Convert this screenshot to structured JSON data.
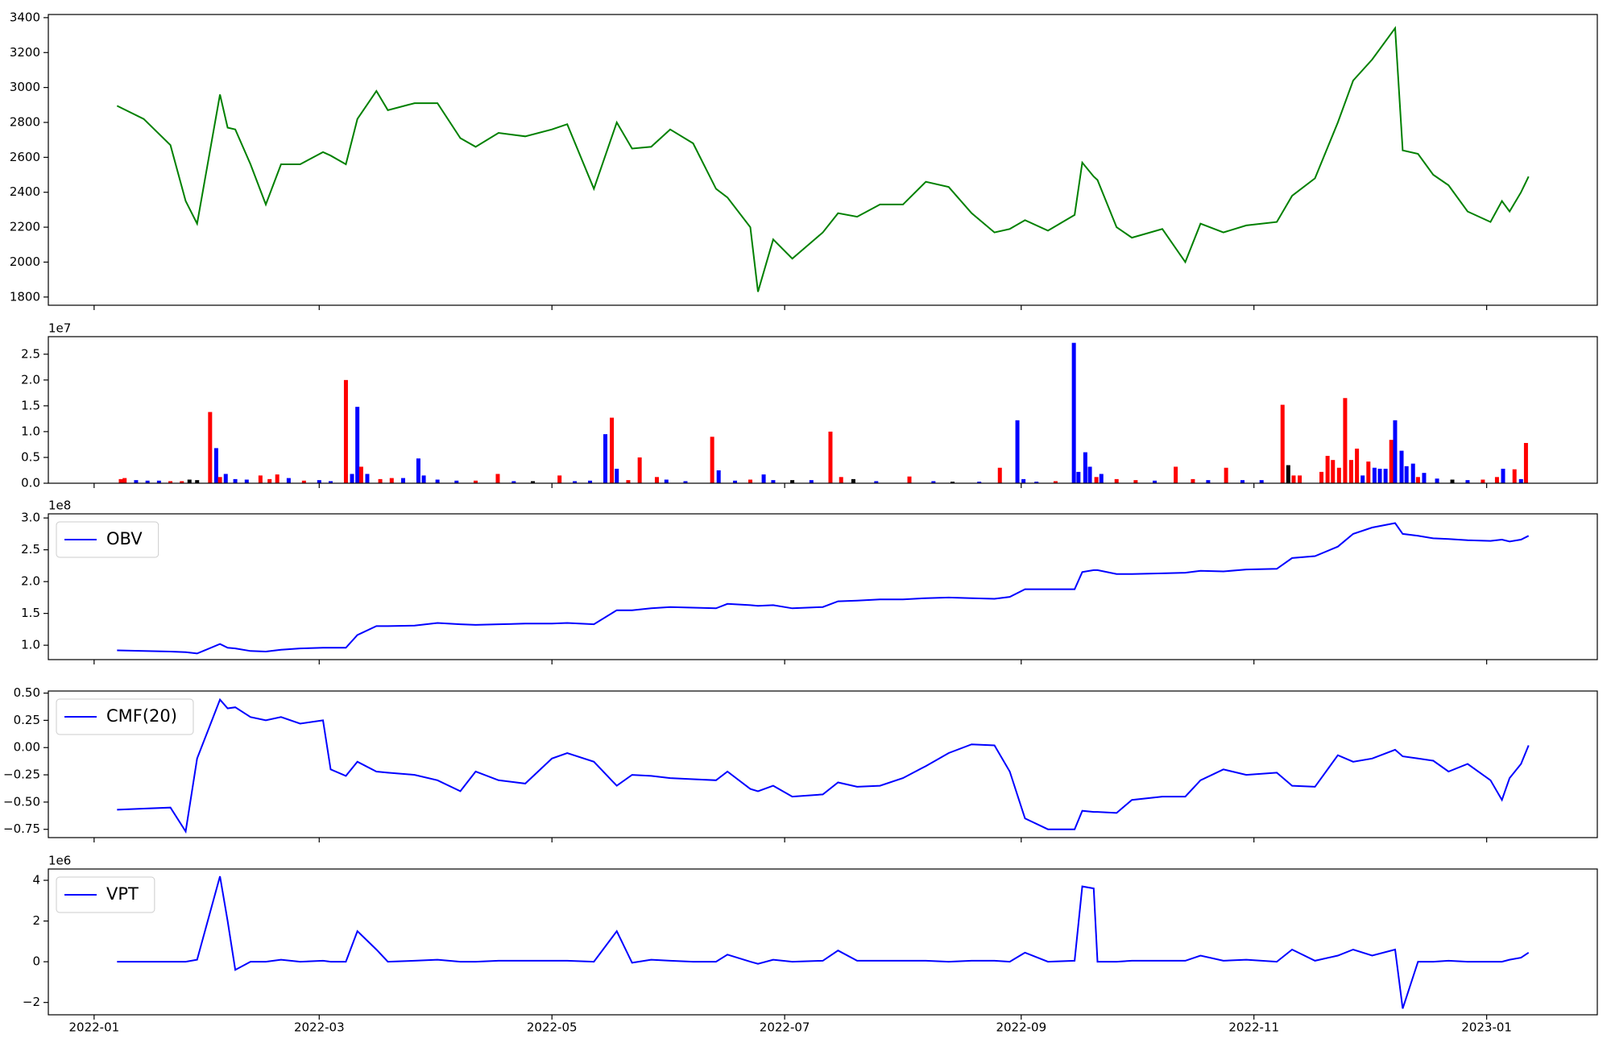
{
  "chart_data": [
    {
      "type": "line",
      "xlim": [
        -12,
        394
      ],
      "ylim": [
        1753,
        3418
      ],
      "yticks": [
        1800,
        2000,
        2200,
        2400,
        2600,
        2800,
        3000,
        3200,
        3400
      ],
      "x": [
        6,
        13,
        20,
        24,
        27,
        33,
        35,
        37,
        41,
        45,
        49,
        54,
        60,
        62,
        66,
        69,
        74,
        77,
        84,
        90,
        96,
        100,
        106,
        113,
        120,
        124,
        131,
        137,
        141,
        146,
        151,
        157,
        163,
        166,
        172,
        174,
        178,
        183,
        191,
        195,
        200,
        206,
        212,
        218,
        224,
        230,
        236,
        240,
        244,
        250,
        257,
        259,
        262,
        263,
        268,
        272,
        280,
        286,
        290,
        296,
        302,
        310,
        314,
        320,
        326,
        330,
        335,
        341,
        343,
        347,
        351,
        355,
        360,
        366,
        369,
        371,
        374,
        376
      ],
      "series": [
        {
          "color": "#008000",
          "values": [
            2895,
            2820,
            2670,
            2350,
            2220,
            2960,
            2770,
            2760,
            2560,
            2330,
            2560,
            2560,
            2630,
            2610,
            2560,
            2820,
            2980,
            2870,
            2910,
            2910,
            2710,
            2660,
            2740,
            2720,
            2760,
            2790,
            2420,
            2800,
            2650,
            2660,
            2760,
            2680,
            2420,
            2370,
            2200,
            1830,
            2130,
            2020,
            2170,
            2280,
            2260,
            2330,
            2330,
            2460,
            2430,
            2280,
            2170,
            2190,
            2240,
            2180,
            2270,
            2570,
            2490,
            2470,
            2200,
            2140,
            2190,
            2000,
            2220,
            2170,
            2210,
            2230,
            2380,
            2480,
            2800,
            3040,
            3160,
            3340,
            2640,
            2620,
            2500,
            2440,
            2290,
            2230,
            2350,
            2290,
            2400,
            2490
          ]
        }
      ]
    },
    {
      "type": "bar",
      "xlim": [
        -12,
        394
      ],
      "ylim": [
        0,
        2.84
      ],
      "scale_label": "1e7",
      "yticks": [
        {
          "value": 0,
          "label": "0.0"
        },
        {
          "value": 0.5,
          "label": "0.5"
        },
        {
          "value": 1,
          "label": "1.0"
        },
        {
          "value": 1.5,
          "label": "1.5"
        },
        {
          "value": 2,
          "label": "2.0"
        },
        {
          "value": 2.5,
          "label": "2.5"
        }
      ],
      "x": [
        7,
        8,
        11,
        14,
        17,
        20,
        23,
        25,
        27,
        30.4,
        32,
        33,
        34.5,
        37,
        40,
        43.6,
        46,
        48,
        51,
        55,
        59,
        62,
        66,
        67.6,
        69,
        70,
        71.6,
        75,
        78,
        81,
        85,
        86.4,
        90,
        95,
        100,
        105.8,
        110,
        115,
        122,
        126,
        130,
        134,
        135.7,
        137,
        140,
        143,
        147.5,
        150,
        155,
        162,
        163.7,
        168,
        172,
        175.5,
        178,
        183,
        188,
        193,
        195.8,
        199,
        205,
        213.7,
        220,
        225,
        232,
        237.4,
        242,
        243.6,
        247,
        252,
        256.8,
        258,
        259.8,
        261,
        262.7,
        264,
        268,
        273,
        278,
        283.5,
        288,
        292,
        296.7,
        301,
        306,
        311.5,
        313,
        314.4,
        316,
        321.7,
        323.3,
        324.7,
        326.3,
        327.9,
        329.5,
        331,
        332.5,
        334,
        335.6,
        337,
        338.5,
        340,
        341,
        342.7,
        344,
        345.7,
        347,
        348.6,
        352,
        356,
        360,
        364,
        367.7,
        369.3,
        372.3,
        374,
        375.3
      ],
      "values": [
        0.08,
        0.1,
        0.06,
        0.05,
        0.05,
        0.04,
        0.04,
        0.07,
        0.06,
        1.38,
        0.68,
        0.12,
        0.18,
        0.08,
        0.07,
        0.15,
        0.08,
        0.17,
        0.1,
        0.05,
        0.06,
        0.04,
        2.0,
        0.18,
        1.48,
        0.32,
        0.18,
        0.08,
        0.1,
        0.1,
        0.48,
        0.15,
        0.07,
        0.05,
        0.05,
        0.18,
        0.04,
        0.04,
        0.15,
        0.04,
        0.05,
        0.95,
        1.27,
        0.28,
        0.06,
        0.5,
        0.12,
        0.07,
        0.04,
        0.9,
        0.25,
        0.05,
        0.07,
        0.17,
        0.06,
        0.06,
        0.06,
        1.0,
        0.12,
        0.08,
        0.04,
        0.13,
        0.04,
        0.03,
        0.03,
        0.3,
        1.22,
        0.08,
        0.03,
        0.04,
        2.72,
        0.22,
        0.6,
        0.32,
        0.12,
        0.18,
        0.08,
        0.06,
        0.05,
        0.32,
        0.08,
        0.06,
        0.3,
        0.06,
        0.06,
        1.52,
        0.35,
        0.15,
        0.15,
        0.22,
        0.53,
        0.45,
        0.3,
        1.65,
        0.45,
        0.67,
        0.15,
        0.42,
        0.3,
        0.28,
        0.28,
        0.84,
        1.22,
        0.63,
        0.33,
        0.38,
        0.12,
        0.2,
        0.09,
        0.07,
        0.06,
        0.07,
        0.12,
        0.28,
        0.27,
        0.08,
        0.78
      ],
      "colors": [
        "red",
        "red",
        "blue",
        "blue",
        "blue",
        "red",
        "red",
        "black",
        "black",
        "red",
        "blue",
        "red",
        "blue",
        "blue",
        "blue",
        "red",
        "red",
        "red",
        "blue",
        "red",
        "blue",
        "blue",
        "red",
        "blue",
        "blue",
        "red",
        "blue",
        "red",
        "red",
        "blue",
        "blue",
        "blue",
        "blue",
        "blue",
        "red",
        "red",
        "blue",
        "black",
        "red",
        "blue",
        "blue",
        "blue",
        "red",
        "blue",
        "red",
        "red",
        "red",
        "blue",
        "blue",
        "red",
        "blue",
        "blue",
        "red",
        "blue",
        "blue",
        "black",
        "blue",
        "red",
        "red",
        "black",
        "blue",
        "red",
        "blue",
        "black",
        "blue",
        "red",
        "blue",
        "blue",
        "blue",
        "red",
        "blue",
        "blue",
        "blue",
        "blue",
        "red",
        "blue",
        "red",
        "red",
        "blue",
        "red",
        "red",
        "blue",
        "red",
        "blue",
        "blue",
        "red",
        "black",
        "red",
        "red",
        "red",
        "red",
        "red",
        "red",
        "red",
        "red",
        "red",
        "blue",
        "red",
        "blue",
        "blue",
        "blue",
        "red",
        "blue",
        "blue",
        "blue",
        "blue",
        "red",
        "blue",
        "blue",
        "black",
        "blue",
        "red",
        "red",
        "blue",
        "red",
        "blue",
        "red"
      ]
    },
    {
      "type": "line",
      "xlim": [
        -12,
        394
      ],
      "ylim": [
        0.774,
        3.065
      ],
      "scale_label": "1e8",
      "legend": "upper left",
      "yticks": [
        {
          "value": 1,
          "label": "1.0"
        },
        {
          "value": 1.5,
          "label": "1.5"
        },
        {
          "value": 2,
          "label": "2.0"
        },
        {
          "value": 2.5,
          "label": "2.5"
        },
        {
          "value": 3,
          "label": "3.0"
        }
      ],
      "x": [
        6,
        13,
        20,
        24,
        27,
        33,
        35,
        37,
        41,
        45,
        49,
        54,
        60,
        62,
        66,
        69,
        74,
        77,
        84,
        90,
        96,
        100,
        106,
        113,
        120,
        124,
        131,
        137,
        141,
        146,
        151,
        157,
        163,
        166,
        172,
        174,
        178,
        183,
        191,
        195,
        200,
        206,
        212,
        218,
        224,
        230,
        236,
        240,
        244,
        250,
        257,
        259,
        262,
        263,
        268,
        272,
        280,
        286,
        290,
        296,
        302,
        310,
        314,
        320,
        326,
        330,
        335,
        341,
        343,
        347,
        351,
        355,
        360,
        366,
        369,
        371,
        374,
        376
      ],
      "series": [
        {
          "name": "OBV",
          "color": "#0000ff",
          "values": [
            0.92,
            0.91,
            0.9,
            0.89,
            0.87,
            1.02,
            0.96,
            0.95,
            0.91,
            0.9,
            0.93,
            0.95,
            0.96,
            0.96,
            0.96,
            1.16,
            1.3,
            1.3,
            1.31,
            1.35,
            1.33,
            1.32,
            1.33,
            1.34,
            1.34,
            1.35,
            1.33,
            1.55,
            1.55,
            1.58,
            1.6,
            1.59,
            1.58,
            1.65,
            1.63,
            1.62,
            1.63,
            1.58,
            1.6,
            1.69,
            1.7,
            1.72,
            1.72,
            1.74,
            1.75,
            1.74,
            1.73,
            1.76,
            1.88,
            1.88,
            1.88,
            2.15,
            2.18,
            2.18,
            2.12,
            2.12,
            2.13,
            2.14,
            2.17,
            2.16,
            2.19,
            2.2,
            2.37,
            2.4,
            2.55,
            2.75,
            2.85,
            2.92,
            2.75,
            2.72,
            2.68,
            2.67,
            2.65,
            2.64,
            2.66,
            2.63,
            2.66,
            2.72
          ]
        }
      ]
    },
    {
      "type": "line",
      "xlim": [
        -12,
        394
      ],
      "ylim": [
        -0.826,
        0.519
      ],
      "legend": "upper left",
      "yticks": [
        {
          "value": -0.75,
          "label": "−0.75"
        },
        {
          "value": -0.5,
          "label": "−0.50"
        },
        {
          "value": -0.25,
          "label": "−0.25"
        },
        {
          "value": 0,
          "label": "0.00"
        },
        {
          "value": 0.25,
          "label": "0.25"
        },
        {
          "value": 0.5,
          "label": "0.50"
        }
      ],
      "x": [
        6,
        13,
        20,
        24,
        27,
        33,
        35,
        37,
        41,
        45,
        49,
        54,
        60,
        62,
        66,
        69,
        74,
        77,
        84,
        90,
        96,
        100,
        106,
        113,
        120,
        124,
        131,
        137,
        141,
        146,
        151,
        157,
        163,
        166,
        172,
        174,
        178,
        183,
        191,
        195,
        200,
        206,
        212,
        218,
        224,
        230,
        236,
        240,
        244,
        250,
        257,
        259,
        262,
        263,
        268,
        272,
        280,
        286,
        290,
        296,
        302,
        310,
        314,
        320,
        326,
        330,
        335,
        341,
        343,
        347,
        351,
        355,
        360,
        366,
        369,
        371,
        374,
        376
      ],
      "series": [
        {
          "name": "CMF(20)",
          "color": "#0000ff",
          "values": [
            -0.57,
            -0.56,
            -0.55,
            -0.77,
            -0.1,
            0.44,
            0.36,
            0.37,
            0.28,
            0.25,
            0.28,
            0.22,
            0.25,
            -0.2,
            -0.26,
            -0.13,
            -0.22,
            -0.23,
            -0.25,
            -0.3,
            -0.4,
            -0.22,
            -0.3,
            -0.33,
            -0.1,
            -0.05,
            -0.13,
            -0.35,
            -0.25,
            -0.26,
            -0.28,
            -0.29,
            -0.3,
            -0.22,
            -0.38,
            -0.4,
            -0.35,
            -0.45,
            -0.43,
            -0.32,
            -0.36,
            -0.35,
            -0.28,
            -0.17,
            -0.05,
            0.03,
            0.02,
            -0.22,
            -0.65,
            -0.75,
            -0.75,
            -0.58,
            -0.59,
            -0.59,
            -0.6,
            -0.48,
            -0.45,
            -0.45,
            -0.3,
            -0.2,
            -0.25,
            -0.23,
            -0.35,
            -0.36,
            -0.07,
            -0.13,
            -0.1,
            -0.02,
            -0.08,
            -0.1,
            -0.12,
            -0.22,
            -0.15,
            -0.3,
            -0.48,
            -0.28,
            -0.15,
            0.02
          ]
        }
      ]
    },
    {
      "type": "line",
      "xlim": [
        -12,
        394
      ],
      "ylim": [
        -2.606,
        4.555
      ],
      "scale_label": "1e6",
      "legend": "upper left",
      "yticks": [
        {
          "value": -2,
          "label": "−2"
        },
        0,
        2,
        4
      ],
      "xticks": [
        {
          "value": 0,
          "label": "2022-01"
        },
        {
          "value": 59,
          "label": "2022-03"
        },
        {
          "value": 120,
          "label": "2022-05"
        },
        {
          "value": 181,
          "label": "2022-07"
        },
        {
          "value": 243,
          "label": "2022-09"
        },
        {
          "value": 304,
          "label": "2022-11"
        },
        {
          "value": 365,
          "label": "2023-01"
        }
      ],
      "x": [
        6,
        13,
        20,
        24,
        27,
        33,
        35,
        37,
        41,
        45,
        49,
        54,
        60,
        62,
        66,
        69,
        74,
        77,
        84,
        90,
        96,
        100,
        106,
        113,
        120,
        124,
        131,
        137,
        141,
        146,
        151,
        157,
        163,
        166,
        172,
        174,
        178,
        183,
        191,
        195,
        200,
        206,
        212,
        218,
        224,
        230,
        236,
        240,
        244,
        250,
        257,
        259,
        262,
        263,
        268,
        272,
        280,
        286,
        290,
        296,
        302,
        310,
        314,
        320,
        326,
        330,
        335,
        341,
        343,
        347,
        351,
        355,
        360,
        366,
        369,
        371,
        374,
        376
      ],
      "series": [
        {
          "name": "VPT",
          "color": "#0000ff",
          "values": [
            0,
            0,
            0,
            0,
            0.1,
            4.2,
            2.0,
            -0.4,
            0,
            0,
            0.1,
            0,
            0.05,
            0,
            0,
            1.5,
            0.6,
            0,
            0.05,
            0.1,
            0,
            0,
            0.05,
            0.05,
            0.05,
            0.05,
            0,
            1.5,
            -0.05,
            0.1,
            0.05,
            0,
            0,
            0.35,
            0,
            -0.1,
            0.1,
            0,
            0.05,
            0.55,
            0.05,
            0.05,
            0.05,
            0.05,
            0,
            0.05,
            0.05,
            0,
            0.45,
            0,
            0.05,
            3.7,
            3.6,
            0,
            0,
            0.05,
            0.05,
            0.05,
            0.3,
            0.05,
            0.1,
            0,
            0.6,
            0.05,
            0.3,
            0.6,
            0.3,
            0.6,
            -2.3,
            0,
            0,
            0.05,
            0,
            0,
            0,
            0.1,
            0.2,
            0.45
          ]
        }
      ]
    }
  ]
}
